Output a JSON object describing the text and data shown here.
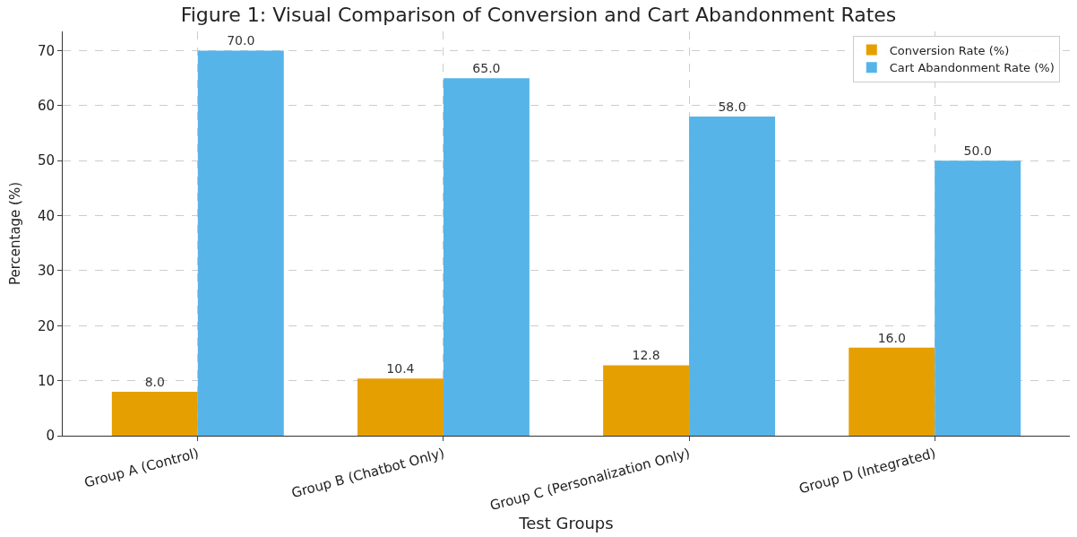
{
  "chart_data": {
    "type": "bar",
    "title": "Figure 1: Visual Comparison of Conversion and Cart Abandonment Rates",
    "xlabel": "Test Groups",
    "ylabel": "Percentage (%)",
    "categories": [
      "Group A (Control)",
      "Group B (Chatbot Only)",
      "Group C (Personalization Only)",
      "Group D (Integrated)"
    ],
    "series": [
      {
        "name": "Conversion Rate (%)",
        "color": "#e69f00",
        "values": [
          8,
          10.4,
          12.8,
          16
        ],
        "value_labels": [
          "8.0",
          "10.4",
          "12.8",
          "16.0"
        ]
      },
      {
        "name": "Cart Abandonment Rate (%)",
        "color": "#56b4e9",
        "values": [
          70,
          65,
          58,
          50
        ],
        "value_labels": [
          "70.0",
          "65.0",
          "58.0",
          "50.0"
        ]
      }
    ],
    "ylim": [
      0,
      73.5
    ],
    "yticks": [
      0,
      10,
      20,
      30,
      40,
      50,
      60,
      70
    ],
    "grid": true,
    "legend": "top right"
  }
}
